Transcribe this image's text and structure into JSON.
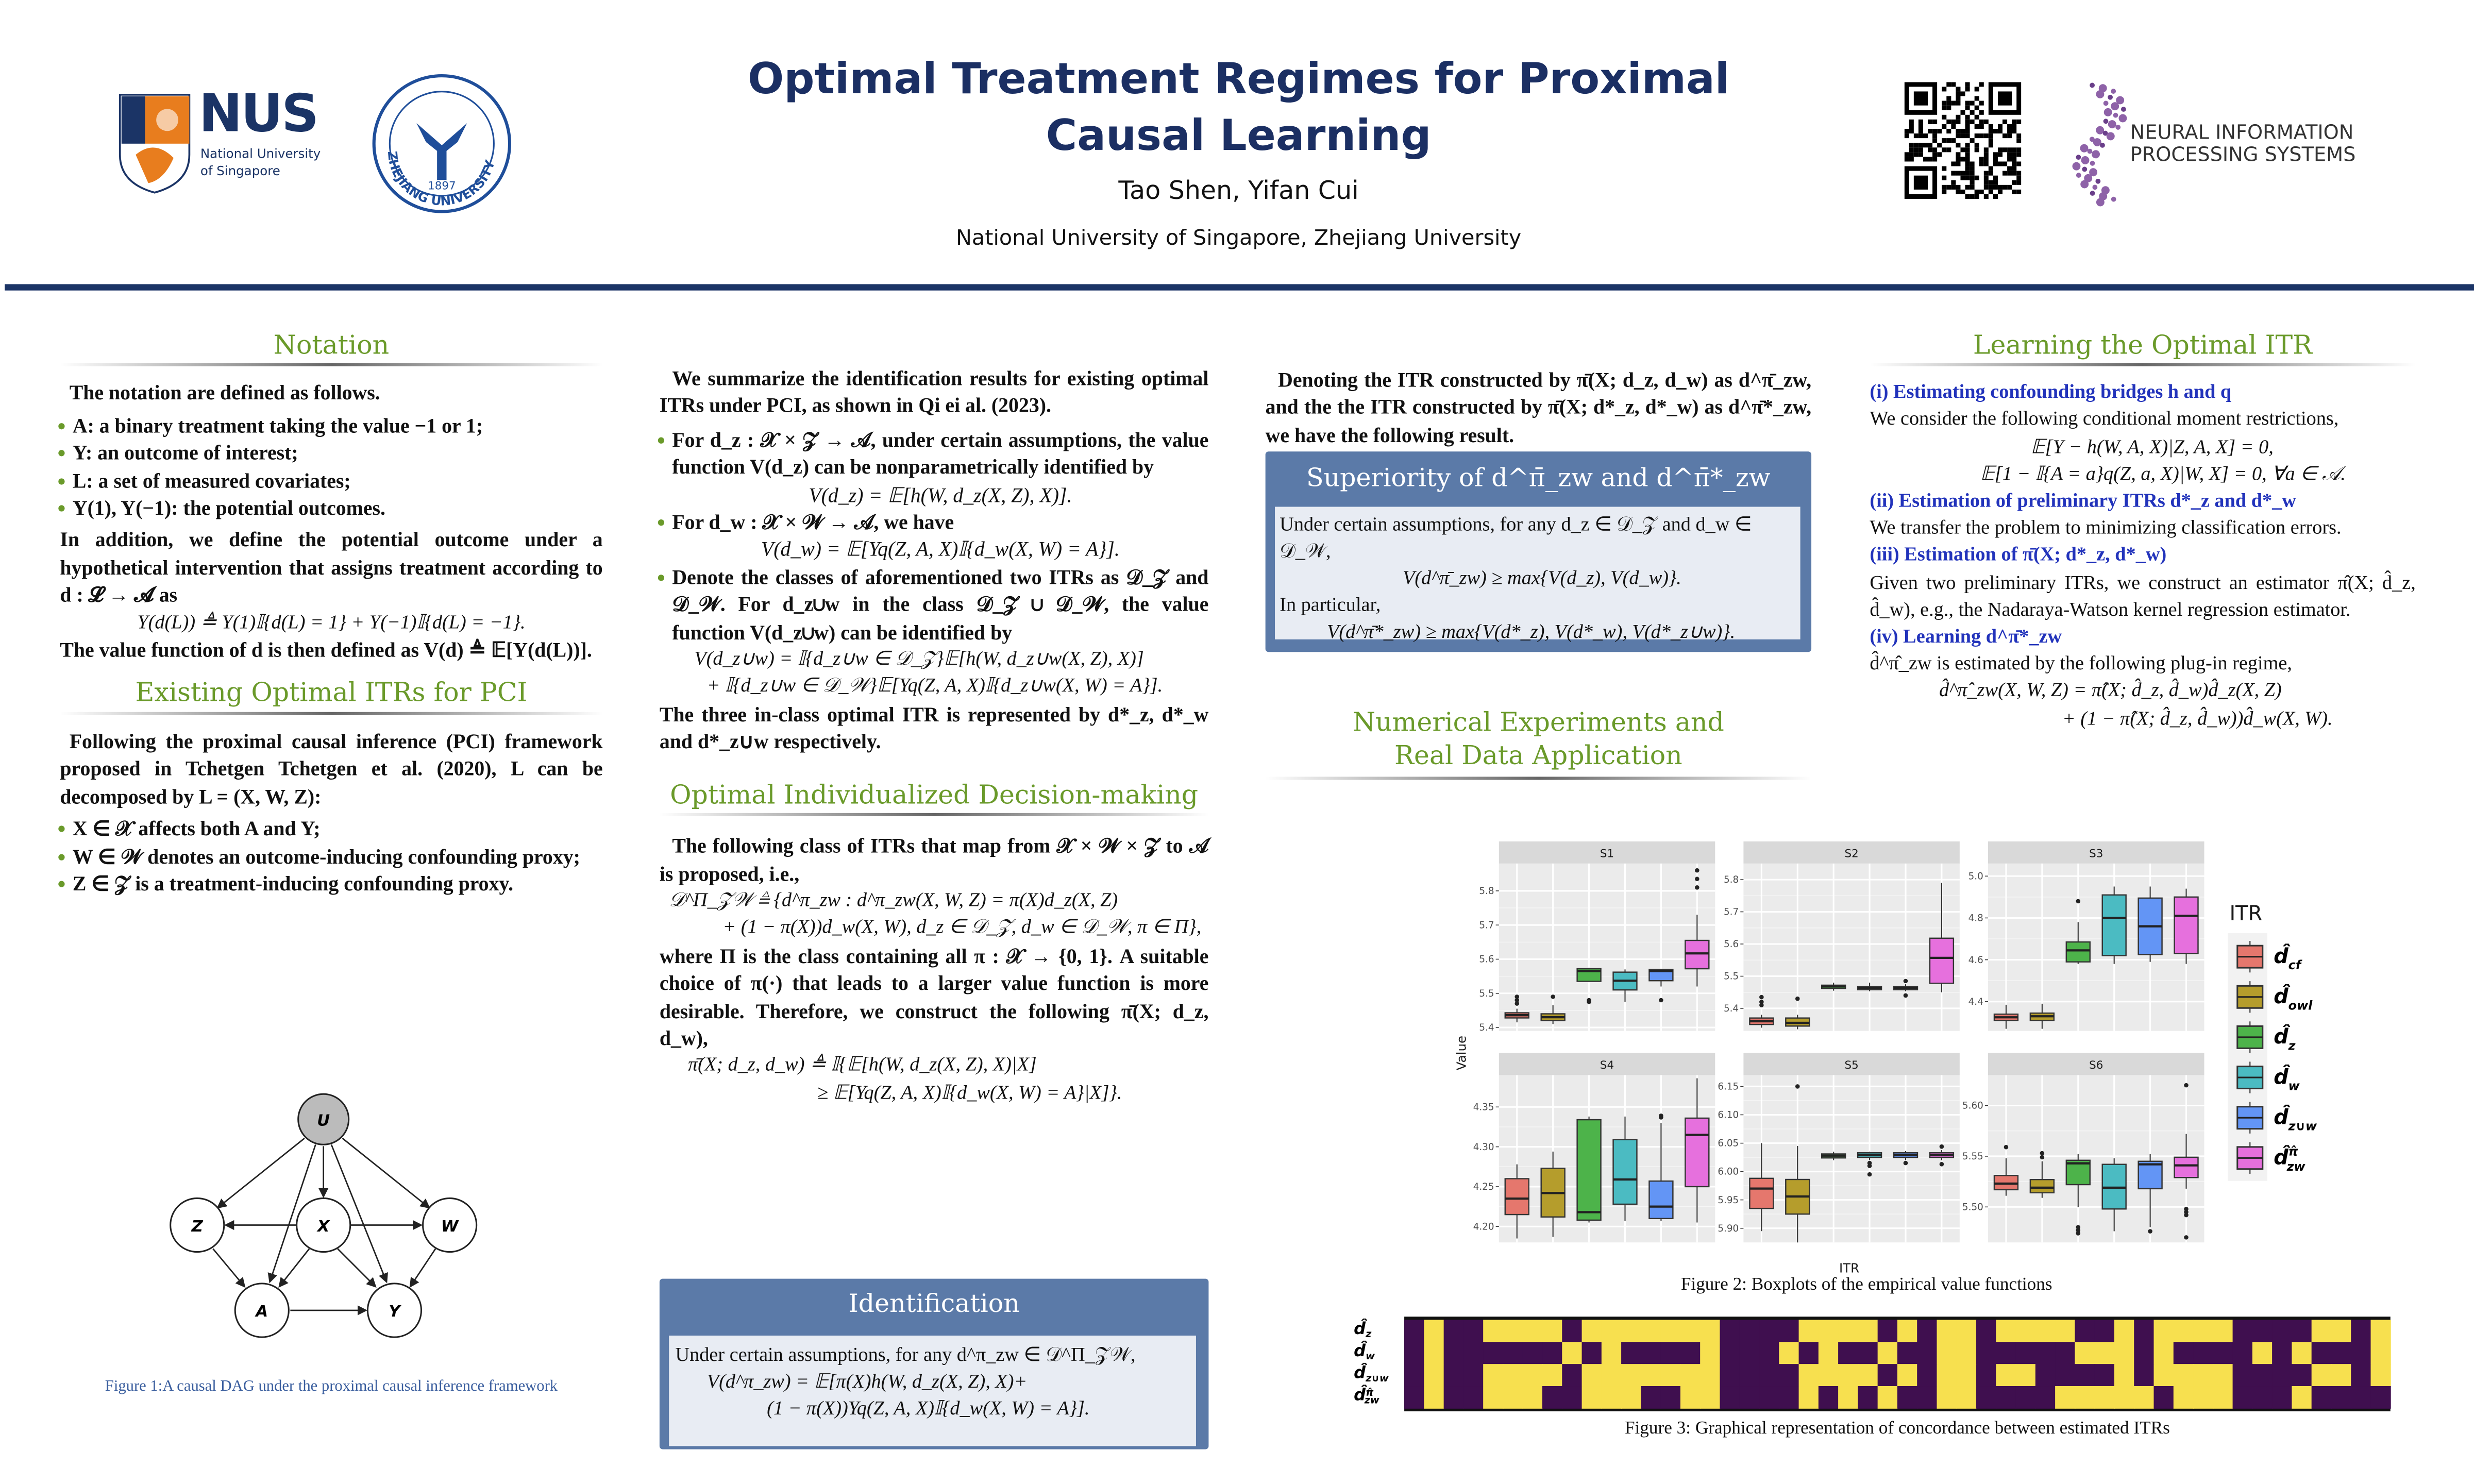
{
  "header": {
    "title_line1": "Optimal Treatment Regimes for Proximal",
    "title_line2": "Causal Learning",
    "authors": "Tao Shen, Yifan Cui",
    "affiliations": "National University of Singapore, Zhejiang University",
    "nus_logo": {
      "text": "NUS",
      "sub1": "National University",
      "sub2": "of Singapore"
    },
    "zju_logo": {
      "text": "ZHEJIANG UNIVERSITY",
      "year": "1897"
    },
    "neurips_logo": {
      "line1": "NEURAL INFORMATION",
      "line2": "PROCESSING SYSTEMS"
    },
    "colors": {
      "title": "#1b2f63",
      "rule": "#1b3466",
      "section": "#6a9a2a",
      "box": "#5b7aa8"
    }
  },
  "notation": {
    "title": "Notation",
    "intro": "The notation are defined as follows.",
    "bullets": [
      "A: a binary treatment taking the value −1 or 1;",
      "Y: an outcome of interest;",
      "L: a set of measured covariates;",
      "Y(1), Y(−1): the potential outcomes."
    ],
    "para2": "In addition, we define the potential outcome under a hypothetical intervention that assigns treatment according to d : 𝓛 → 𝓐 as",
    "eq": "Y(d(L)) ≜ Y(1)𝕀{d(L) = 1} + Y(−1)𝕀{d(L) = −1}.",
    "para3": "The value function of d is then defined as V(d) ≜ 𝔼[Y(d(L))]."
  },
  "existing": {
    "title": "Existing Optimal ITRs for PCI",
    "para": "Following the proximal causal inference (PCI) framework proposed in Tchetgen Tchetgen et al. (2020), L can be decomposed by L = (X, W, Z):",
    "bullets": [
      "X ∈ 𝒳 affects both A and Y;",
      "W ∈ 𝒲 denotes an outcome-inducing confounding proxy;",
      "Z ∈ 𝒵 is a treatment-inducing confounding proxy."
    ],
    "dag_nodes": {
      "u": "U",
      "z": "Z",
      "x": "X",
      "w": "W",
      "a": "A",
      "y": "Y"
    },
    "caption_label": "Figure 1:",
    "caption": "A causal DAG under the proximal causal inference framework"
  },
  "identification_summary": {
    "para1": "We summarize the identification results for existing optimal ITRs under PCI, as shown in Qi ei al. (2023).",
    "b1": "For d_z : 𝒳 × 𝒵 → 𝒜, under certain assumptions, the value function V(d_z) can be nonparametrically identified by",
    "b1_eq": "V(d_z) = 𝔼[h(W, d_z(X, Z), X)].",
    "b2": "For d_w : 𝒳 × 𝒲 → 𝒜, we have",
    "b2_eq": "V(d_w) = 𝔼[Yq(Z, A, X)𝕀{d_w(X, W) = A}].",
    "b3": "Denote the classes of aforementioned two ITRs as 𝒟_𝒵 and 𝒟_𝒲. For d_z∪w in the class 𝒟_𝒵 ∪ 𝒟_𝒲, the value function V(d_z∪w) can be identified by",
    "b3_eq1": "V(d_z∪w) = 𝕀{d_z∪w ∈ 𝒟_𝒵}𝔼[h(W, d_z∪w(X, Z), X)]",
    "b3_eq2": "+ 𝕀{d_z∪w ∈ 𝒟_𝒲}𝔼[Yq(Z, A, X)𝕀{d_z∪w(X, W) = A}].",
    "para2": "The three in-class optimal ITR is represented by d*_z, d*_w and d*_z∪w respectively."
  },
  "optimal": {
    "title": "Optimal Individualized Decision-making",
    "para1": "The following class of ITRs that map from 𝒳 × 𝒲 × 𝒵 to 𝒜 is proposed, i.e.,",
    "eq1a": "𝒟^Π_𝒵𝒲 ≜ {d^π_zw : d^π_zw(X, W, Z) = π(X)d_z(X, Z)",
    "eq1b": "+ (1 − π(X))d_w(X, W), d_z ∈ 𝒟_𝒵, d_w ∈ 𝒟_𝒲, π ∈ Π},",
    "para2": "where Π is the class containing all π : 𝒳 → {0, 1}. A suitable choice of π(·) that leads to a larger value function is more desirable. Therefore, we construct the following π̄(X; d_z, d_w),",
    "eq2a": "π̄(X; d_z, d_w) ≜ 𝕀{𝔼[h(W, d_z(X, Z), X)|X]",
    "eq2b": "≥ 𝔼[Yq(Z, A, X)𝕀{d_w(X, W) = A}|X]}."
  },
  "identification_box": {
    "title": "Identification",
    "line1": "Under certain assumptions, for any d^π_zw ∈ 𝒟^Π_𝒵𝒲,",
    "line2": "V(d^π_zw) = 𝔼[π(X)h(W, d_z(X, Z), X)+",
    "line3": "(1 − π(X))Yq(Z, A, X)𝕀{d_w(X, W) = A}]."
  },
  "superiority": {
    "intro": "Denoting the ITR constructed by π̄(X; d_z, d_w) as d^π̄_zw, and the the ITR constructed by π̄(X; d*_z, d*_w) as d^π̄*_zw, we have the following result.",
    "title": "Superiority of d^π̄_zw and d^π̄*_zw",
    "line1": "Under certain assumptions, for any d_z ∈ 𝒟_𝒵 and d_w ∈ 𝒟_𝒲,",
    "line2": "V(d^π̄_zw) ≥ max{V(d_z), V(d_w)}.",
    "line3": "In particular,",
    "line4": "V(d^π̄*_zw) ≥ max{V(d*_z), V(d*_w), V(d*_z∪w)}."
  },
  "numerical": {
    "title_line1": "Numerical Experiments and",
    "title_line2": "Real Data Application",
    "fig2_caption": "Figure 2: Boxplots of the empirical value functions",
    "fig3_caption": "Figure 3: Graphical representation of concordance between estimated ITRs"
  },
  "learning": {
    "title": "Learning the Optimal ITR",
    "s1_head": "(i) Estimating confounding bridges h and q",
    "s1_text": "We consider the following conditional moment restrictions,",
    "s1_eq1": "𝔼[Y − h(W, A, X)|Z, A, X] = 0,",
    "s1_eq2": "𝔼[1 − 𝕀{A = a}q(Z, a, X)|W, X] = 0, ∀a ∈ 𝒜.",
    "s2_head": "(ii) Estimation of preliminary ITRs d*_z and d*_w",
    "s2_text": "We transfer the problem to minimizing classification errors.",
    "s3_head": "(iii) Estimation of π̄(X; d*_z, d*_w)",
    "s3_text": "Given two preliminary ITRs, we construct an estimator π̂(X; d̂_z, d̂_w), e.g., the Nadaraya-Watson kernel regression estimator.",
    "s4_head": "(iv) Learning d^π̄*_zw",
    "s4_text": "d̂^π̂_zw is estimated by the following plug-in regime,",
    "s4_eq1": "d̂^π̂_zw(X, W, Z) = π̂(X; d̂_z, d̂_w)d̂_z(X, Z)",
    "s4_eq2": "+ (1 − π̂(X; d̂_z, d̂_w))d̂_w(X, W)."
  },
  "chart_data": [
    {
      "type": "boxplot",
      "title": "",
      "xlabel": "ITR",
      "ylabel": "Value",
      "legend_title": "ITR",
      "legend_position": "right",
      "categories": [
        {
          "key": "cf",
          "sym": "d̂",
          "sub": "cf",
          "sup": "",
          "color": "#e5776d"
        },
        {
          "key": "owl",
          "sym": "d̂",
          "sub": "owl",
          "sup": "",
          "color": "#b59d2c"
        },
        {
          "key": "z",
          "sym": "d̂",
          "sub": "z",
          "sup": "",
          "color": "#4db34a"
        },
        {
          "key": "w",
          "sym": "d̂",
          "sub": "w",
          "sup": "",
          "color": "#4bbbc2"
        },
        {
          "key": "zUw",
          "sym": "d̂",
          "sub": "z∪w",
          "sup": "",
          "color": "#6395f5"
        },
        {
          "key": "zw",
          "sym": "d̂",
          "sub": "zw",
          "sup": "π̂",
          "color": "#e670dd"
        }
      ],
      "panels": [
        {
          "name": "S1",
          "ylim": [
            5.39,
            5.88
          ],
          "yticks": [
            "5.4",
            "5.5",
            "5.6",
            "5.7",
            "5.8"
          ],
          "boxes": [
            {
              "stats": [
                5.415,
                5.428,
                5.436,
                5.443,
                5.455
              ],
              "outliers": [
                5.47,
                5.48,
                5.49
              ]
            },
            {
              "stats": [
                5.41,
                5.42,
                5.43,
                5.44,
                5.465
              ],
              "outliers": [
                5.49
              ]
            },
            {
              "stats": [
                5.535,
                5.535,
                5.565,
                5.572,
                5.575
              ],
              "outliers": [
                5.475,
                5.48
              ]
            },
            {
              "stats": [
                5.475,
                5.51,
                5.537,
                5.562,
                5.57
              ],
              "outliers": []
            },
            {
              "stats": [
                5.52,
                5.537,
                5.565,
                5.57,
                5.572
              ],
              "outliers": [
                5.48
              ]
            },
            {
              "stats": [
                5.52,
                5.572,
                5.617,
                5.655,
                5.73
              ],
              "outliers": [
                5.81,
                5.835,
                5.86
              ]
            }
          ]
        },
        {
          "name": "S2",
          "ylim": [
            5.33,
            5.85
          ],
          "yticks": [
            "5.4",
            "5.5",
            "5.6",
            "5.7",
            "5.8"
          ],
          "boxes": [
            {
              "stats": [
                5.34,
                5.35,
                5.36,
                5.37,
                5.38
              ],
              "outliers": [
                5.41,
                5.42,
                5.435
              ]
            },
            {
              "stats": [
                5.335,
                5.345,
                5.355,
                5.37,
                5.38
              ],
              "outliers": [
                5.43
              ]
            },
            {
              "stats": [
                5.455,
                5.462,
                5.468,
                5.472,
                5.48
              ],
              "outliers": []
            },
            {
              "stats": [
                5.453,
                5.458,
                5.463,
                5.467,
                5.48
              ],
              "outliers": []
            },
            {
              "stats": [
                5.453,
                5.458,
                5.463,
                5.467,
                5.475
              ],
              "outliers": [
                5.44,
                5.485
              ]
            },
            {
              "stats": [
                5.45,
                5.478,
                5.557,
                5.618,
                5.79
              ],
              "outliers": []
            }
          ]
        },
        {
          "name": "S3",
          "ylim": [
            4.26,
            5.06
          ],
          "yticks": [
            "4.4",
            "4.6",
            "4.8",
            "5.0"
          ],
          "boxes": [
            {
              "stats": [
                4.27,
                4.31,
                4.325,
                4.34,
                4.385
              ],
              "outliers": []
            },
            {
              "stats": [
                4.27,
                4.31,
                4.33,
                4.345,
                4.39
              ],
              "outliers": []
            },
            {
              "stats": [
                4.58,
                4.59,
                4.645,
                4.685,
                4.78
              ],
              "outliers": [
                4.88
              ]
            },
            {
              "stats": [
                4.58,
                4.62,
                4.8,
                4.91,
                4.95
              ],
              "outliers": []
            },
            {
              "stats": [
                4.59,
                4.625,
                4.76,
                4.895,
                4.95
              ],
              "outliers": []
            },
            {
              "stats": [
                4.58,
                4.63,
                4.81,
                4.9,
                4.94
              ],
              "outliers": []
            }
          ]
        },
        {
          "name": "S4",
          "ylim": [
            4.18,
            4.39
          ],
          "yticks": [
            "4.20",
            "4.25",
            "4.30",
            "4.35"
          ],
          "boxes": [
            {
              "stats": [
                4.185,
                4.215,
                4.235,
                4.26,
                4.278
              ],
              "outliers": []
            },
            {
              "stats": [
                4.187,
                4.212,
                4.242,
                4.273,
                4.294
              ],
              "outliers": []
            },
            {
              "stats": [
                4.205,
                4.208,
                4.218,
                4.334,
                4.338
              ],
              "outliers": []
            },
            {
              "stats": [
                4.207,
                4.228,
                4.259,
                4.309,
                4.338
              ],
              "outliers": []
            },
            {
              "stats": [
                4.207,
                4.21,
                4.225,
                4.257,
                4.33
              ],
              "outliers": [
                4.337,
                4.339
              ]
            },
            {
              "stats": [
                4.205,
                4.25,
                4.315,
                4.336,
                4.386
              ],
              "outliers": []
            }
          ]
        },
        {
          "name": "S5",
          "ylim": [
            5.875,
            6.17
          ],
          "yticks": [
            "5.90",
            "5.95",
            "6.00",
            "6.05",
            "6.10",
            "6.15"
          ],
          "boxes": [
            {
              "stats": [
                5.895,
                5.935,
                5.97,
                5.988,
                6.05
              ],
              "outliers": []
            },
            {
              "stats": [
                5.875,
                5.925,
                5.956,
                5.986,
                6.045
              ],
              "outliers": [
                6.15
              ]
            },
            {
              "stats": [
                6.02,
                6.024,
                6.028,
                6.031,
                6.035
              ],
              "outliers": []
            },
            {
              "stats": [
                6.02,
                6.025,
                6.029,
                6.033,
                6.035
              ],
              "outliers": [
                6.01,
                6.015,
                5.995
              ]
            },
            {
              "stats": [
                6.02,
                6.025,
                6.029,
                6.033,
                6.036
              ],
              "outliers": [
                6.015
              ]
            },
            {
              "stats": [
                6.02,
                6.025,
                6.029,
                6.033,
                6.038
              ],
              "outliers": [
                6.013,
                6.044
              ]
            }
          ]
        },
        {
          "name": "S6",
          "ylim": [
            5.465,
            5.63
          ],
          "yticks": [
            "5.50",
            "5.55",
            "5.60"
          ],
          "boxes": [
            {
              "stats": [
                5.511,
                5.517,
                5.523,
                5.531,
                5.548
              ],
              "outliers": [
                5.559
              ]
            },
            {
              "stats": [
                5.509,
                5.514,
                5.519,
                5.527,
                5.545
              ],
              "outliers": [
                5.549,
                5.553
              ]
            },
            {
              "stats": [
                5.5,
                5.522,
                5.543,
                5.546,
                5.552
              ],
              "outliers": [
                5.474,
                5.477,
                5.48
              ]
            },
            {
              "stats": [
                5.476,
                5.498,
                5.519,
                5.542,
                5.548
              ],
              "outliers": []
            },
            {
              "stats": [
                5.48,
                5.518,
                5.542,
                5.545,
                5.552
              ],
              "outliers": [
                5.476
              ]
            },
            {
              "stats": [
                5.518,
                5.529,
                5.541,
                5.549,
                5.572
              ],
              "outliers": [
                5.47,
                5.492,
                5.495,
                5.498,
                5.62
              ]
            }
          ]
        }
      ]
    },
    {
      "type": "heatmap",
      "title": "",
      "colors": {
        "0": "#3f0f4f",
        "1": "#f7e04f"
      },
      "rows": [
        {
          "sym": "d̂",
          "sub": "z",
          "sup": "",
          "values": "01001111011111110000111101011011110010111100001101"
        },
        {
          "sym": "d̂",
          "sub": "w",
          "sup": "",
          "values": "01000000101000010001010010011000001110100001010001"
        },
        {
          "sym": "d̂",
          "sub": "z∪w",
          "sup": "",
          "values": "01001111011111110000111101011011000010111100001101"
        },
        {
          "sym": "d̂",
          "sub": "zw",
          "sup": "π̂",
          "values": "01001110011100110000101010011000011111011100010000"
        }
      ]
    }
  ]
}
